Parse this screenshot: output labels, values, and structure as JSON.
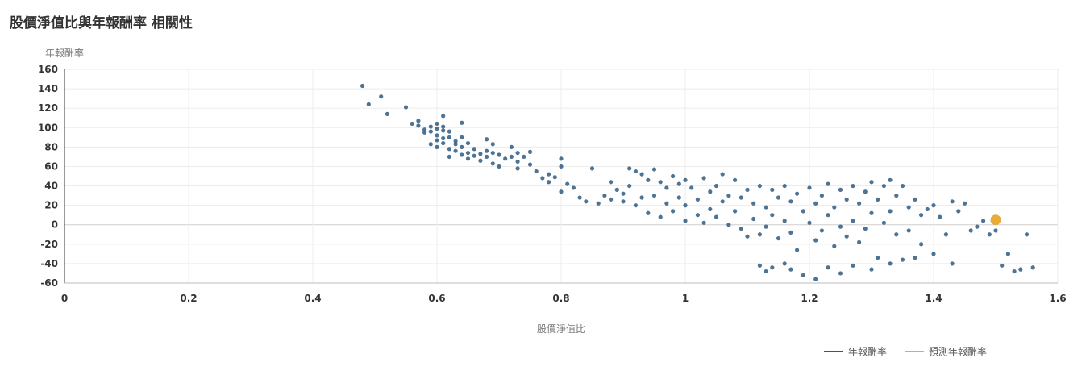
{
  "title": "股價淨值比與年報酬率 相關性",
  "colors": {
    "series": "#2e5a82",
    "predicted": "#e8ac3a",
    "axis": "#333333",
    "grid": "#ececec",
    "zero": "#cfcfcf"
  },
  "chart_data": {
    "type": "scatter",
    "title": "股價淨值比與年報酬率 相關性",
    "xlabel": "股價淨值比",
    "ylabel": "年報酬率",
    "xlim": [
      0,
      1.6
    ],
    "ylim": [
      -60,
      160
    ],
    "x_ticks": [
      0,
      0.2,
      0.4,
      0.6,
      0.8,
      1,
      1.2,
      1.4,
      1.6
    ],
    "x_tick_labels": [
      "0",
      "0.2",
      "0.4",
      "0.6",
      "0.8",
      "1",
      "1.2",
      "1.4",
      "1.6"
    ],
    "y_ticks": [
      -60,
      -40,
      -20,
      0,
      20,
      40,
      60,
      80,
      100,
      120,
      140,
      160
    ],
    "y_tick_labels": [
      "-60",
      "-40",
      "-20",
      "0",
      "20",
      "40",
      "60",
      "80",
      "100",
      "120",
      "140",
      "160"
    ],
    "grid": true,
    "legend_position": "bottom-right",
    "series": [
      {
        "name": "年報酬率",
        "points": [
          [
            0.48,
            143
          ],
          [
            0.49,
            124
          ],
          [
            0.51,
            132
          ],
          [
            0.52,
            114
          ],
          [
            0.55,
            121
          ],
          [
            0.56,
            104
          ],
          [
            0.57,
            107
          ],
          [
            0.57,
            102
          ],
          [
            0.58,
            98
          ],
          [
            0.58,
            95
          ],
          [
            0.59,
            101
          ],
          [
            0.59,
            96
          ],
          [
            0.59,
            83
          ],
          [
            0.6,
            104
          ],
          [
            0.6,
            99
          ],
          [
            0.6,
            92
          ],
          [
            0.6,
            87
          ],
          [
            0.6,
            80
          ],
          [
            0.61,
            112
          ],
          [
            0.61,
            101
          ],
          [
            0.61,
            97
          ],
          [
            0.61,
            89
          ],
          [
            0.61,
            84
          ],
          [
            0.62,
            96
          ],
          [
            0.62,
            90
          ],
          [
            0.62,
            78
          ],
          [
            0.62,
            70
          ],
          [
            0.63,
            86
          ],
          [
            0.63,
            83
          ],
          [
            0.63,
            76
          ],
          [
            0.64,
            105
          ],
          [
            0.64,
            90
          ],
          [
            0.64,
            80
          ],
          [
            0.64,
            72
          ],
          [
            0.65,
            84
          ],
          [
            0.65,
            74
          ],
          [
            0.65,
            68
          ],
          [
            0.66,
            78
          ],
          [
            0.66,
            71
          ],
          [
            0.67,
            73
          ],
          [
            0.67,
            66
          ],
          [
            0.68,
            88
          ],
          [
            0.68,
            76
          ],
          [
            0.68,
            70
          ],
          [
            0.69,
            83
          ],
          [
            0.69,
            74
          ],
          [
            0.69,
            63
          ],
          [
            0.7,
            72
          ],
          [
            0.7,
            60
          ],
          [
            0.71,
            68
          ],
          [
            0.72,
            80
          ],
          [
            0.72,
            70
          ],
          [
            0.73,
            74
          ],
          [
            0.73,
            65
          ],
          [
            0.73,
            58
          ],
          [
            0.74,
            70
          ],
          [
            0.75,
            75
          ],
          [
            0.75,
            62
          ],
          [
            0.76,
            55
          ],
          [
            0.77,
            48
          ],
          [
            0.78,
            52
          ],
          [
            0.78,
            44
          ],
          [
            0.79,
            49
          ],
          [
            0.8,
            68
          ],
          [
            0.8,
            60
          ],
          [
            0.8,
            34
          ],
          [
            0.81,
            42
          ],
          [
            0.82,
            38
          ],
          [
            0.83,
            28
          ],
          [
            0.84,
            24
          ],
          [
            0.85,
            58
          ],
          [
            0.86,
            22
          ],
          [
            0.87,
            30
          ],
          [
            0.88,
            44
          ],
          [
            0.88,
            26
          ],
          [
            0.89,
            36
          ],
          [
            0.9,
            32
          ],
          [
            0.9,
            24
          ],
          [
            0.91,
            58
          ],
          [
            0.91,
            40
          ],
          [
            0.92,
            55
          ],
          [
            0.92,
            20
          ],
          [
            0.93,
            52
          ],
          [
            0.93,
            28
          ],
          [
            0.94,
            46
          ],
          [
            0.94,
            12
          ],
          [
            0.95,
            57
          ],
          [
            0.95,
            30
          ],
          [
            0.96,
            44
          ],
          [
            0.96,
            8
          ],
          [
            0.97,
            38
          ],
          [
            0.97,
            22
          ],
          [
            0.98,
            50
          ],
          [
            0.98,
            14
          ],
          [
            0.99,
            42
          ],
          [
            0.99,
            28
          ],
          [
            1.0,
            46
          ],
          [
            1.0,
            20
          ],
          [
            1.0,
            4
          ],
          [
            1.01,
            38
          ],
          [
            1.02,
            26
          ],
          [
            1.02,
            10
          ],
          [
            1.03,
            48
          ],
          [
            1.03,
            2
          ],
          [
            1.04,
            34
          ],
          [
            1.04,
            16
          ],
          [
            1.05,
            40
          ],
          [
            1.05,
            8
          ],
          [
            1.06,
            52
          ],
          [
            1.06,
            24
          ],
          [
            1.07,
            30
          ],
          [
            1.07,
            0
          ],
          [
            1.08,
            46
          ],
          [
            1.08,
            14
          ],
          [
            1.09,
            28
          ],
          [
            1.09,
            -4
          ],
          [
            1.1,
            36
          ],
          [
            1.1,
            -12
          ],
          [
            1.11,
            22
          ],
          [
            1.11,
            6
          ],
          [
            1.12,
            40
          ],
          [
            1.12,
            -10
          ],
          [
            1.12,
            -42
          ],
          [
            1.13,
            18
          ],
          [
            1.13,
            -2
          ],
          [
            1.13,
            -48
          ],
          [
            1.14,
            36
          ],
          [
            1.14,
            10
          ],
          [
            1.14,
            -44
          ],
          [
            1.15,
            28
          ],
          [
            1.15,
            -14
          ],
          [
            1.16,
            40
          ],
          [
            1.16,
            4
          ],
          [
            1.16,
            -40
          ],
          [
            1.17,
            24
          ],
          [
            1.17,
            -8
          ],
          [
            1.17,
            -46
          ],
          [
            1.18,
            32
          ],
          [
            1.18,
            -26
          ],
          [
            1.19,
            14
          ],
          [
            1.19,
            -52
          ],
          [
            1.2,
            38
          ],
          [
            1.2,
            2
          ],
          [
            1.21,
            22
          ],
          [
            1.21,
            -16
          ],
          [
            1.21,
            -56
          ],
          [
            1.22,
            30
          ],
          [
            1.22,
            -6
          ],
          [
            1.23,
            42
          ],
          [
            1.23,
            10
          ],
          [
            1.23,
            -44
          ],
          [
            1.24,
            18
          ],
          [
            1.24,
            -22
          ],
          [
            1.25,
            36
          ],
          [
            1.25,
            -2
          ],
          [
            1.25,
            -50
          ],
          [
            1.26,
            26
          ],
          [
            1.26,
            -12
          ],
          [
            1.27,
            40
          ],
          [
            1.27,
            4
          ],
          [
            1.27,
            -42
          ],
          [
            1.28,
            22
          ],
          [
            1.28,
            -18
          ],
          [
            1.29,
            34
          ],
          [
            1.29,
            -4
          ],
          [
            1.3,
            44
          ],
          [
            1.3,
            12
          ],
          [
            1.3,
            -46
          ],
          [
            1.31,
            26
          ],
          [
            1.31,
            -34
          ],
          [
            1.32,
            40
          ],
          [
            1.32,
            2
          ],
          [
            1.33,
            46
          ],
          [
            1.33,
            14
          ],
          [
            1.33,
            -40
          ],
          [
            1.34,
            30
          ],
          [
            1.34,
            -10
          ],
          [
            1.35,
            40
          ],
          [
            1.35,
            -36
          ],
          [
            1.36,
            18
          ],
          [
            1.36,
            -6
          ],
          [
            1.37,
            26
          ],
          [
            1.37,
            -34
          ],
          [
            1.38,
            10
          ],
          [
            1.38,
            -20
          ],
          [
            1.39,
            16
          ],
          [
            1.4,
            20
          ],
          [
            1.4,
            -30
          ],
          [
            1.41,
            8
          ],
          [
            1.42,
            -10
          ],
          [
            1.43,
            24
          ],
          [
            1.43,
            -40
          ],
          [
            1.44,
            14
          ],
          [
            1.45,
            22
          ],
          [
            1.46,
            -6
          ],
          [
            1.47,
            -2
          ],
          [
            1.48,
            4
          ],
          [
            1.49,
            -10
          ],
          [
            1.5,
            -6
          ],
          [
            1.51,
            -42
          ],
          [
            1.52,
            -30
          ],
          [
            1.53,
            -48
          ],
          [
            1.54,
            -46
          ],
          [
            1.55,
            -10
          ],
          [
            1.56,
            -44
          ]
        ]
      },
      {
        "name": "預測年報酬率",
        "points": [
          [
            1.5,
            5
          ]
        ]
      }
    ]
  }
}
